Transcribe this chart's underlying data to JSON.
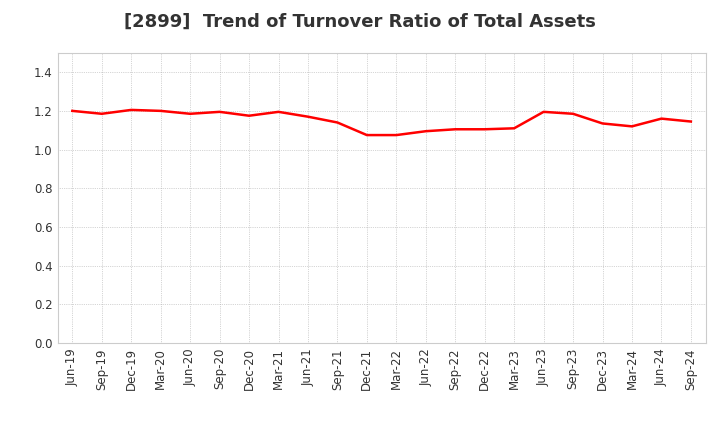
{
  "title": "[2899]  Trend of Turnover Ratio of Total Assets",
  "x_labels": [
    "Jun-19",
    "Sep-19",
    "Dec-19",
    "Mar-20",
    "Jun-20",
    "Sep-20",
    "Dec-20",
    "Mar-21",
    "Jun-21",
    "Sep-21",
    "Dec-21",
    "Mar-22",
    "Jun-22",
    "Sep-22",
    "Dec-22",
    "Mar-23",
    "Jun-23",
    "Sep-23",
    "Dec-23",
    "Mar-24",
    "Jun-24",
    "Sep-24"
  ],
  "values": [
    1.2,
    1.185,
    1.205,
    1.2,
    1.185,
    1.195,
    1.175,
    1.195,
    1.17,
    1.14,
    1.075,
    1.075,
    1.095,
    1.105,
    1.105,
    1.11,
    1.195,
    1.185,
    1.135,
    1.12,
    1.16,
    1.145
  ],
  "line_color": "#ff0000",
  "line_width": 1.8,
  "ylim": [
    0.0,
    1.5
  ],
  "yticks": [
    0.0,
    0.2,
    0.4,
    0.6,
    0.8,
    1.0,
    1.2,
    1.4
  ],
  "background_color": "#ffffff",
  "grid_color": "#999999",
  "title_fontsize": 13,
  "title_color": "#333333",
  "tick_fontsize": 8.5,
  "tick_color": "#333333"
}
